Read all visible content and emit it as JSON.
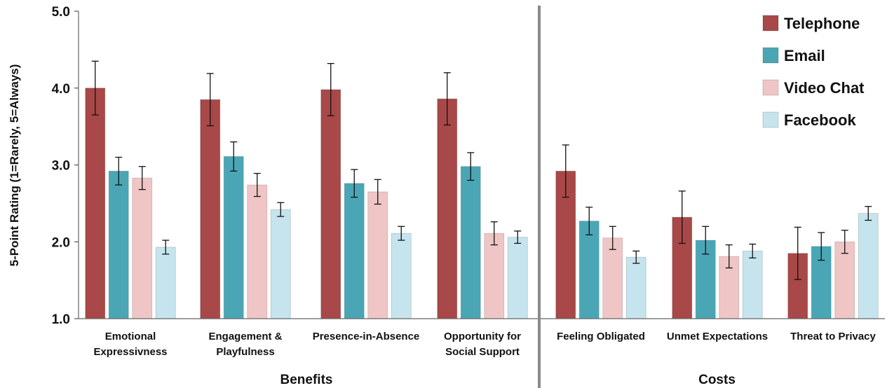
{
  "chart_data": {
    "type": "bar",
    "title": "",
    "ylabel": "5-Point Rating (1=Rarely, 5=Always)",
    "ylim": [
      1.0,
      5.0
    ],
    "yticks": [
      "1.0",
      "2.0",
      "3.0",
      "4.0",
      "5.0"
    ],
    "grid": false,
    "legend_position": "top-right",
    "categories": [
      "Emotional Expressivness",
      "Engagement & Playfulness",
      "Presence-in-Absence",
      "Opportunity for Social Support",
      "Feeling Obligated",
      "Unmet Expectations",
      "Threat to Privacy"
    ],
    "category_label_lines": [
      [
        "Emotional",
        "Expressivness"
      ],
      [
        "Engagement &",
        "Playfulness"
      ],
      [
        "Presence-in-Absence"
      ],
      [
        "Opportunity for",
        "Social Support"
      ],
      [
        "Feeling Obligated"
      ],
      [
        "Unmet Expectations"
      ],
      [
        "Threat to Privacy"
      ]
    ],
    "groups": [
      {
        "label": "Benefits",
        "categories": [
          0,
          1,
          2,
          3
        ]
      },
      {
        "label": "Costs",
        "categories": [
          4,
          5,
          6
        ]
      }
    ],
    "series": [
      {
        "name": "Telephone",
        "color": "#a94848",
        "values": [
          4.0,
          3.85,
          3.98,
          3.86,
          2.92,
          2.32,
          1.85
        ],
        "error": [
          0.35,
          0.34,
          0.34,
          0.34,
          0.34,
          0.34,
          0.34
        ]
      },
      {
        "name": "Email",
        "color": "#4aa6b5",
        "values": [
          2.92,
          3.11,
          2.76,
          2.98,
          2.27,
          2.02,
          1.94
        ],
        "error": [
          0.18,
          0.19,
          0.18,
          0.18,
          0.18,
          0.18,
          0.18
        ]
      },
      {
        "name": "Video Chat",
        "color": "#efc5c5",
        "values": [
          2.83,
          2.74,
          2.65,
          2.11,
          2.05,
          1.81,
          2.0
        ],
        "error": [
          0.15,
          0.15,
          0.16,
          0.15,
          0.15,
          0.15,
          0.15
        ]
      },
      {
        "name": "Facebook",
        "color": "#c5e4ed",
        "values": [
          1.93,
          2.42,
          2.11,
          2.06,
          1.8,
          1.88,
          2.37
        ],
        "error": [
          0.09,
          0.09,
          0.09,
          0.08,
          0.08,
          0.09,
          0.09
        ]
      }
    ]
  }
}
